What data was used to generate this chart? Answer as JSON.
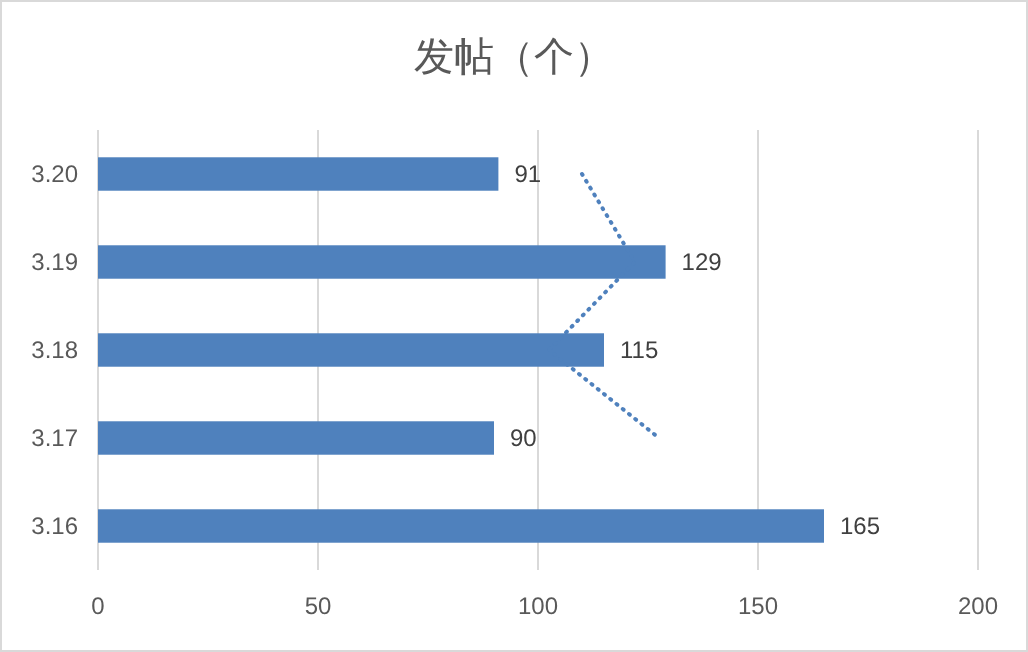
{
  "chart_data": {
    "type": "bar",
    "orientation": "horizontal",
    "title": "发帖（个）",
    "categories": [
      "3.20",
      "3.19",
      "3.18",
      "3.17",
      "3.16"
    ],
    "series": [
      {
        "color": "#4f81bd",
        "values": [
          91,
          129,
          115,
          90,
          165
        ],
        "value_labels": [
          "91",
          "129",
          "115",
          "90",
          "165"
        ]
      },
      {
        "type": "line",
        "color": "#4f81bd",
        "values": [
          110,
          122,
          102.5,
          127.5,
          null
        ],
        "line_style": "dotted"
      }
    ],
    "xlim": [
      0,
      200
    ],
    "xticks": [
      0,
      50,
      100,
      150,
      200
    ],
    "grid": "x"
  }
}
